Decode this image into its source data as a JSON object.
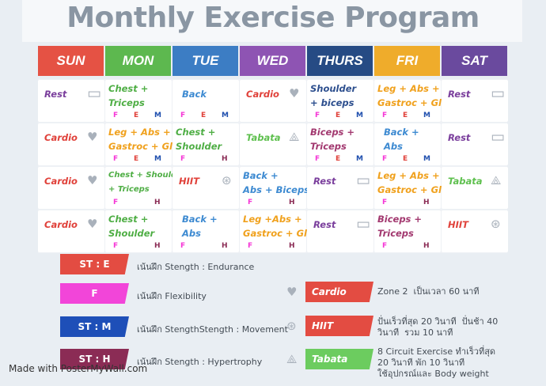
{
  "title": "Monthly Exercise Program",
  "days": [
    "SUN",
    "MON",
    "TUE",
    "WED",
    "THURS",
    "FRI",
    "SAT"
  ],
  "day_colors": [
    "#e55244",
    "#5db84f",
    "#3c7dc4",
    "#8e54b3",
    "#264b84",
    "#efac2b",
    "#6a4a9e"
  ],
  "rows": [
    [
      {
        "text": "Rest",
        "color": "#7a3e9c",
        "icon": "bed-icon"
      },
      {
        "text": "Chest +\nTriceps",
        "color": "#4fae45",
        "tags": "FEM"
      },
      {
        "text": "Back",
        "color": "#3d8ad1",
        "tags": "FEM"
      },
      {
        "text": "Cardio",
        "color": "#e0413a",
        "icon": "heart-icon"
      },
      {
        "text": "Shoulder\n+ biceps",
        "color": "#2d4f8e",
        "tags": "FEM"
      },
      {
        "text": "Leg + Abs +\nGastroc + Glue",
        "color": "#f0a11d",
        "tags": "FEM"
      },
      {
        "text": "Rest",
        "color": "#7a3e9c",
        "icon": "bed-icon"
      }
    ],
    [
      {
        "text": "Cardio",
        "color": "#e0413a",
        "icon": "heart-icon"
      },
      {
        "text": "Leg + Abs +\nGastroc + Glue",
        "color": "#f0a11d",
        "tags": "FEM"
      },
      {
        "text": "Chest +\nShoulder",
        "color": "#4fae45",
        "tags": "FH"
      },
      {
        "text": "Tabata",
        "color": "#5fc04f",
        "icon": "triad-icon"
      },
      {
        "text": "Biceps +\nTriceps",
        "color": "#a2386f",
        "tags": "FEM"
      },
      {
        "text": "Back +\nAbs",
        "color": "#3d8ad1",
        "tags": "FEM"
      },
      {
        "text": "Rest",
        "color": "#7a3e9c",
        "icon": "bed-icon"
      }
    ],
    [
      {
        "text": "Cardio",
        "color": "#e0413a",
        "icon": "heart-icon"
      },
      {
        "text": "Chest + Shoulder\n+ Triceps",
        "color": "#4fae45",
        "tags": "FH"
      },
      {
        "text": "HIIT",
        "color": "#e0413a",
        "icon": "wheel-icon"
      },
      {
        "text": "Back +\nAbs + Biceps",
        "color": "#3d8ad1",
        "tags": "FH"
      },
      {
        "text": "Rest",
        "color": "#7a3e9c",
        "icon": "bed-icon"
      },
      {
        "text": "Leg + Abs +\nGastroc + Glue",
        "color": "#f0a11d",
        "tags": "FH"
      },
      {
        "text": "Tabata",
        "color": "#5fc04f",
        "icon": "triad-icon"
      }
    ],
    [
      {
        "text": "Cardio",
        "color": "#e0413a",
        "icon": "heart-icon"
      },
      {
        "text": "Chest +\nShoulder",
        "color": "#4fae45",
        "tags": "FH"
      },
      {
        "text": "Back +\nAbs",
        "color": "#3d8ad1",
        "tags": "FH"
      },
      {
        "text": "Leg +Abs +\nGastroc + Glue",
        "color": "#f0a11d",
        "tags": "FH"
      },
      {
        "text": "Rest",
        "color": "#7a3e9c",
        "icon": "bed-icon"
      },
      {
        "text": "Biceps +\nTriceps",
        "color": "#a2386f",
        "tags": "FH"
      },
      {
        "text": "HIIT",
        "color": "#e0413a",
        "icon": "wheel-icon"
      }
    ]
  ],
  "tag_colors": {
    "F": "#f535d6",
    "E": "#e0413a",
    "M": "#1f4fae",
    "H": "#8b2c55"
  },
  "legend_left": [
    {
      "label": "ST : E",
      "color": "#e34c42",
      "desc": "เน้นฝึก Stength : Endurance"
    },
    {
      "label": "F",
      "color": "#f245d9",
      "desc": "เน้นฝึก Flexibility"
    },
    {
      "label": "ST : M",
      "color": "#1e4fb8",
      "desc": "เน้นฝึก StengthStength : Movement"
    },
    {
      "label": "ST : H",
      "color": "#8b2c55",
      "desc": "เน้นฝึก Stength : Hypertrophy"
    }
  ],
  "legend_right": [
    {
      "label": "Cardio",
      "color": "#e34c42",
      "icon": "heart-icon",
      "desc": "Zone 2  เป็นเวลา 60 นาที"
    },
    {
      "label": "HIIT",
      "color": "#e34c42",
      "icon": "wheel-icon",
      "desc": "ปั่นเร็วที่สุด 20 วินาที  ปั่นช้า 40\nวินาที  รวม 10 นาที"
    },
    {
      "label": "Tabata",
      "color": "#6ccc5f",
      "icon": "triad-icon",
      "desc": "8 Circuit Exercise ทำเร็วที่สุด\n20 วินาที พัก 10 วินาที\nใช้อุปกรณ์และ Body weight"
    }
  ],
  "watermark": "Made with PosterMyWall.com"
}
